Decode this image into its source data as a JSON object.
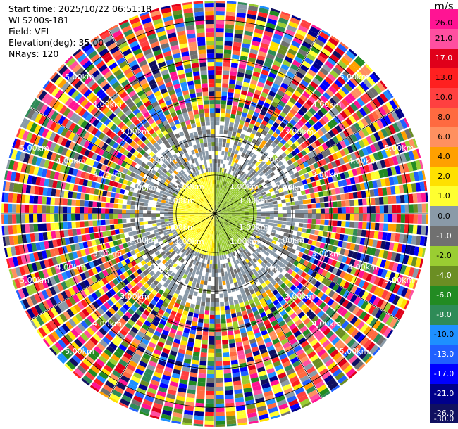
{
  "header": {
    "start_time": "Start time: 2025/10/22 06:51:18",
    "instrument": "WLS200s-181",
    "field": "Field: VEL",
    "elevation": "Elevation(deg): 35.00",
    "nrays": "NRays: 120"
  },
  "chart_data": {
    "type": "ppi",
    "field": "VEL",
    "unit": "m/s",
    "elevation_deg": 35.0,
    "nrays": 120,
    "range_rings_km": [
      1.0,
      2.0,
      3.0,
      4.0,
      5.0
    ],
    "range_ring_labels": [
      "1.00km",
      "2.00km",
      "3.00km",
      "4.00km",
      "5.00km"
    ],
    "max_range_km": 5.5,
    "spokes_deg": [
      0,
      30,
      60,
      90,
      120,
      150,
      180,
      210,
      240,
      270,
      300,
      330
    ],
    "colorbar": {
      "labels": [
        "26.0",
        "21.0",
        "17.0",
        "13.0",
        "10.0",
        "8.0",
        "6.0",
        "4.0",
        "2.0",
        "1.0",
        "0.0",
        "-1.0",
        "-2.0",
        "-4.0",
        "-6.0",
        "-8.0",
        "-10.0",
        "-13.0",
        "-17.0",
        "-21.0",
        "-26.0",
        "-30.0"
      ],
      "colors": [
        "#ff1493",
        "#ff4fa0",
        "#e0001a",
        "#ff2020",
        "#ff4040",
        "#ff6a40",
        "#ff9060",
        "#ffa000",
        "#ffe000",
        "#ffff30",
        "#8a9aa8",
        "#707070",
        "#9acd32",
        "#6b8e23",
        "#228b22",
        "#2e8b57",
        "#1e90ff",
        "#2060ff",
        "#0000ff",
        "#00008b",
        "#101060"
      ]
    }
  }
}
